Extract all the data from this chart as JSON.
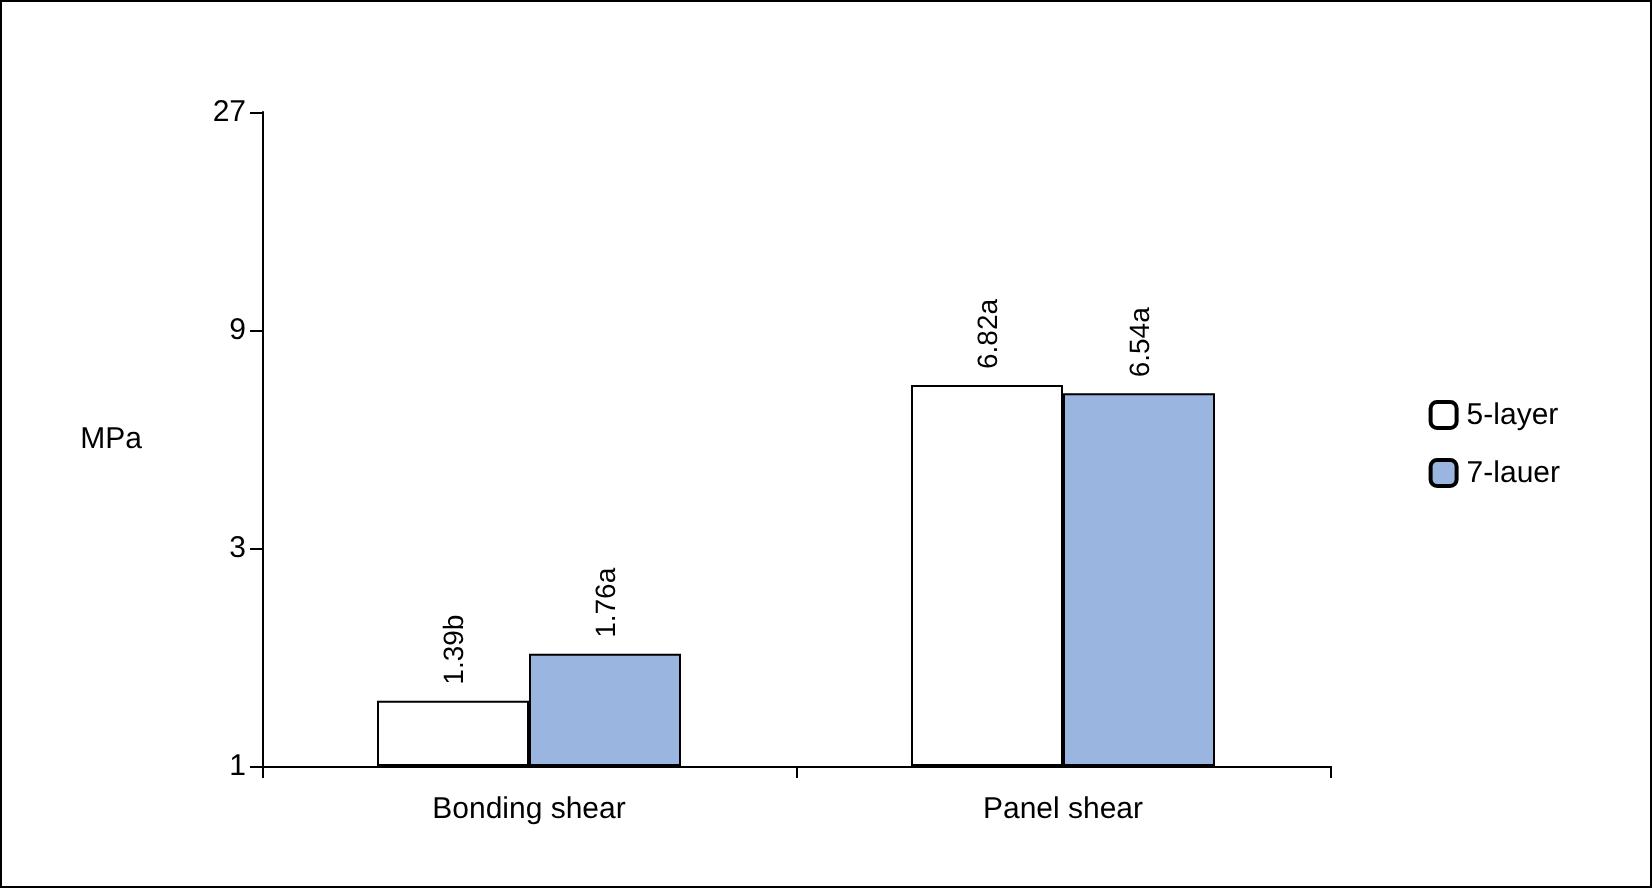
{
  "chart_data": {
    "type": "bar",
    "ylabel": "MPa",
    "categories": [
      "Bonding shear",
      "Panel shear"
    ],
    "series": [
      {
        "name": "5-layer",
        "color": "#ffffff",
        "values": [
          1.39,
          6.82
        ],
        "value_labels": [
          "1.39b",
          "6.82a"
        ]
      },
      {
        "name": "7-lauer",
        "color": "#9ab5e0",
        "values": [
          1.76,
          6.54
        ],
        "value_labels": [
          "1.76a",
          "6.54a"
        ]
      }
    ],
    "log": "y",
    "ylim": [
      1,
      27
    ],
    "yticks": [
      1,
      3,
      9,
      27
    ],
    "grid": false,
    "legend": "right"
  }
}
